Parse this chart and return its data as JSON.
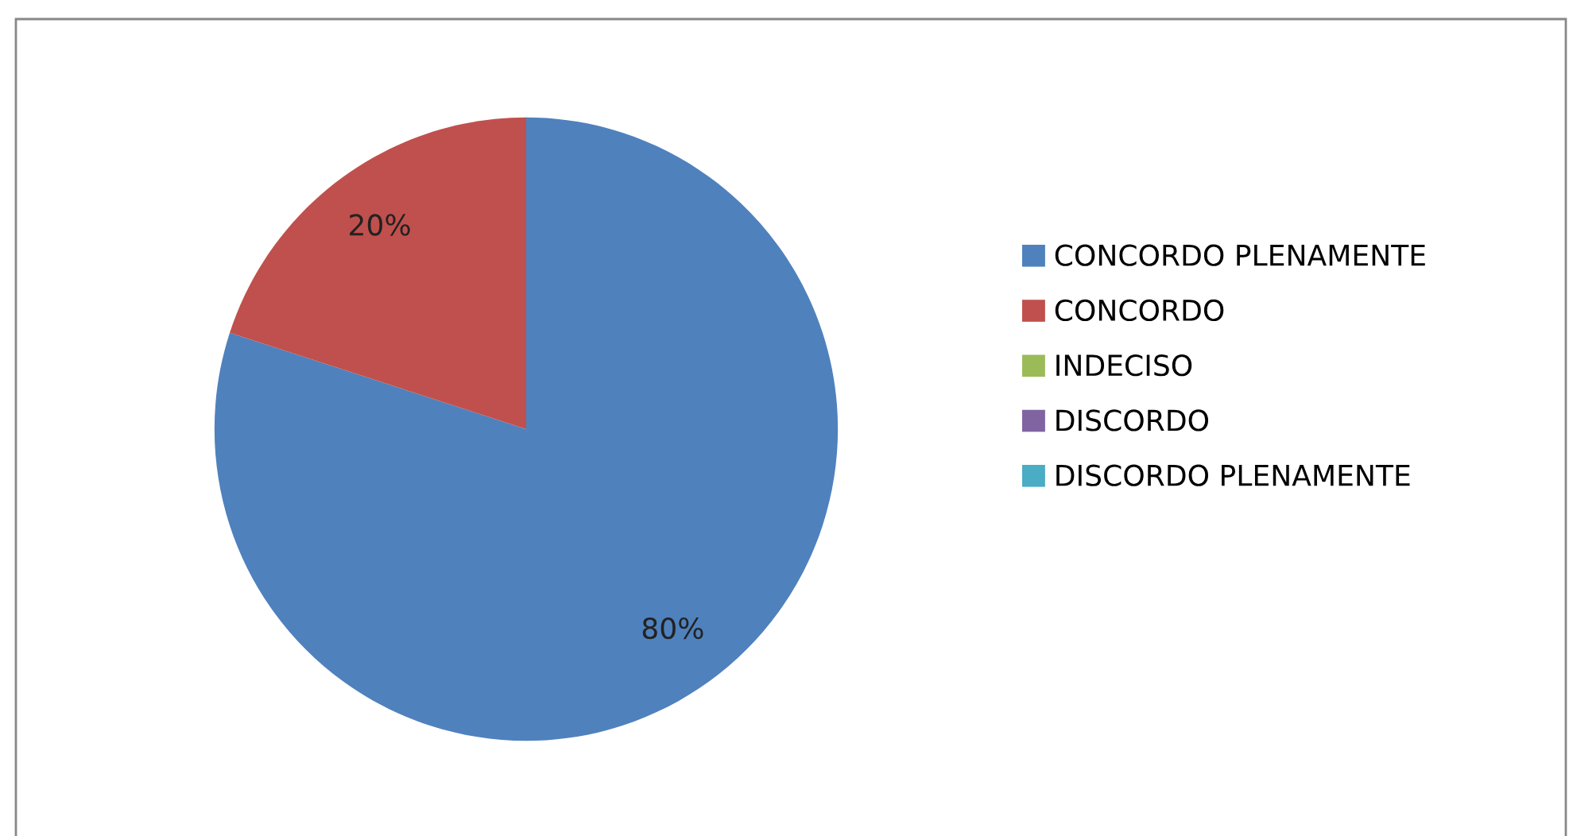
{
  "chart_data": {
    "type": "pie",
    "categories": [
      "CONCORDO PLENAMENTE",
      "CONCORDO",
      "INDECISO",
      "DISCORDO",
      "DISCORDO PLENAMENTE"
    ],
    "values": [
      80,
      20,
      0,
      0,
      0
    ],
    "value_labels": [
      "80%",
      "20%",
      null,
      null,
      null
    ],
    "colors": [
      "#4f81bd",
      "#c0504d",
      "#9bbb59",
      "#8064a2",
      "#4bacc6"
    ],
    "legend": "right"
  }
}
